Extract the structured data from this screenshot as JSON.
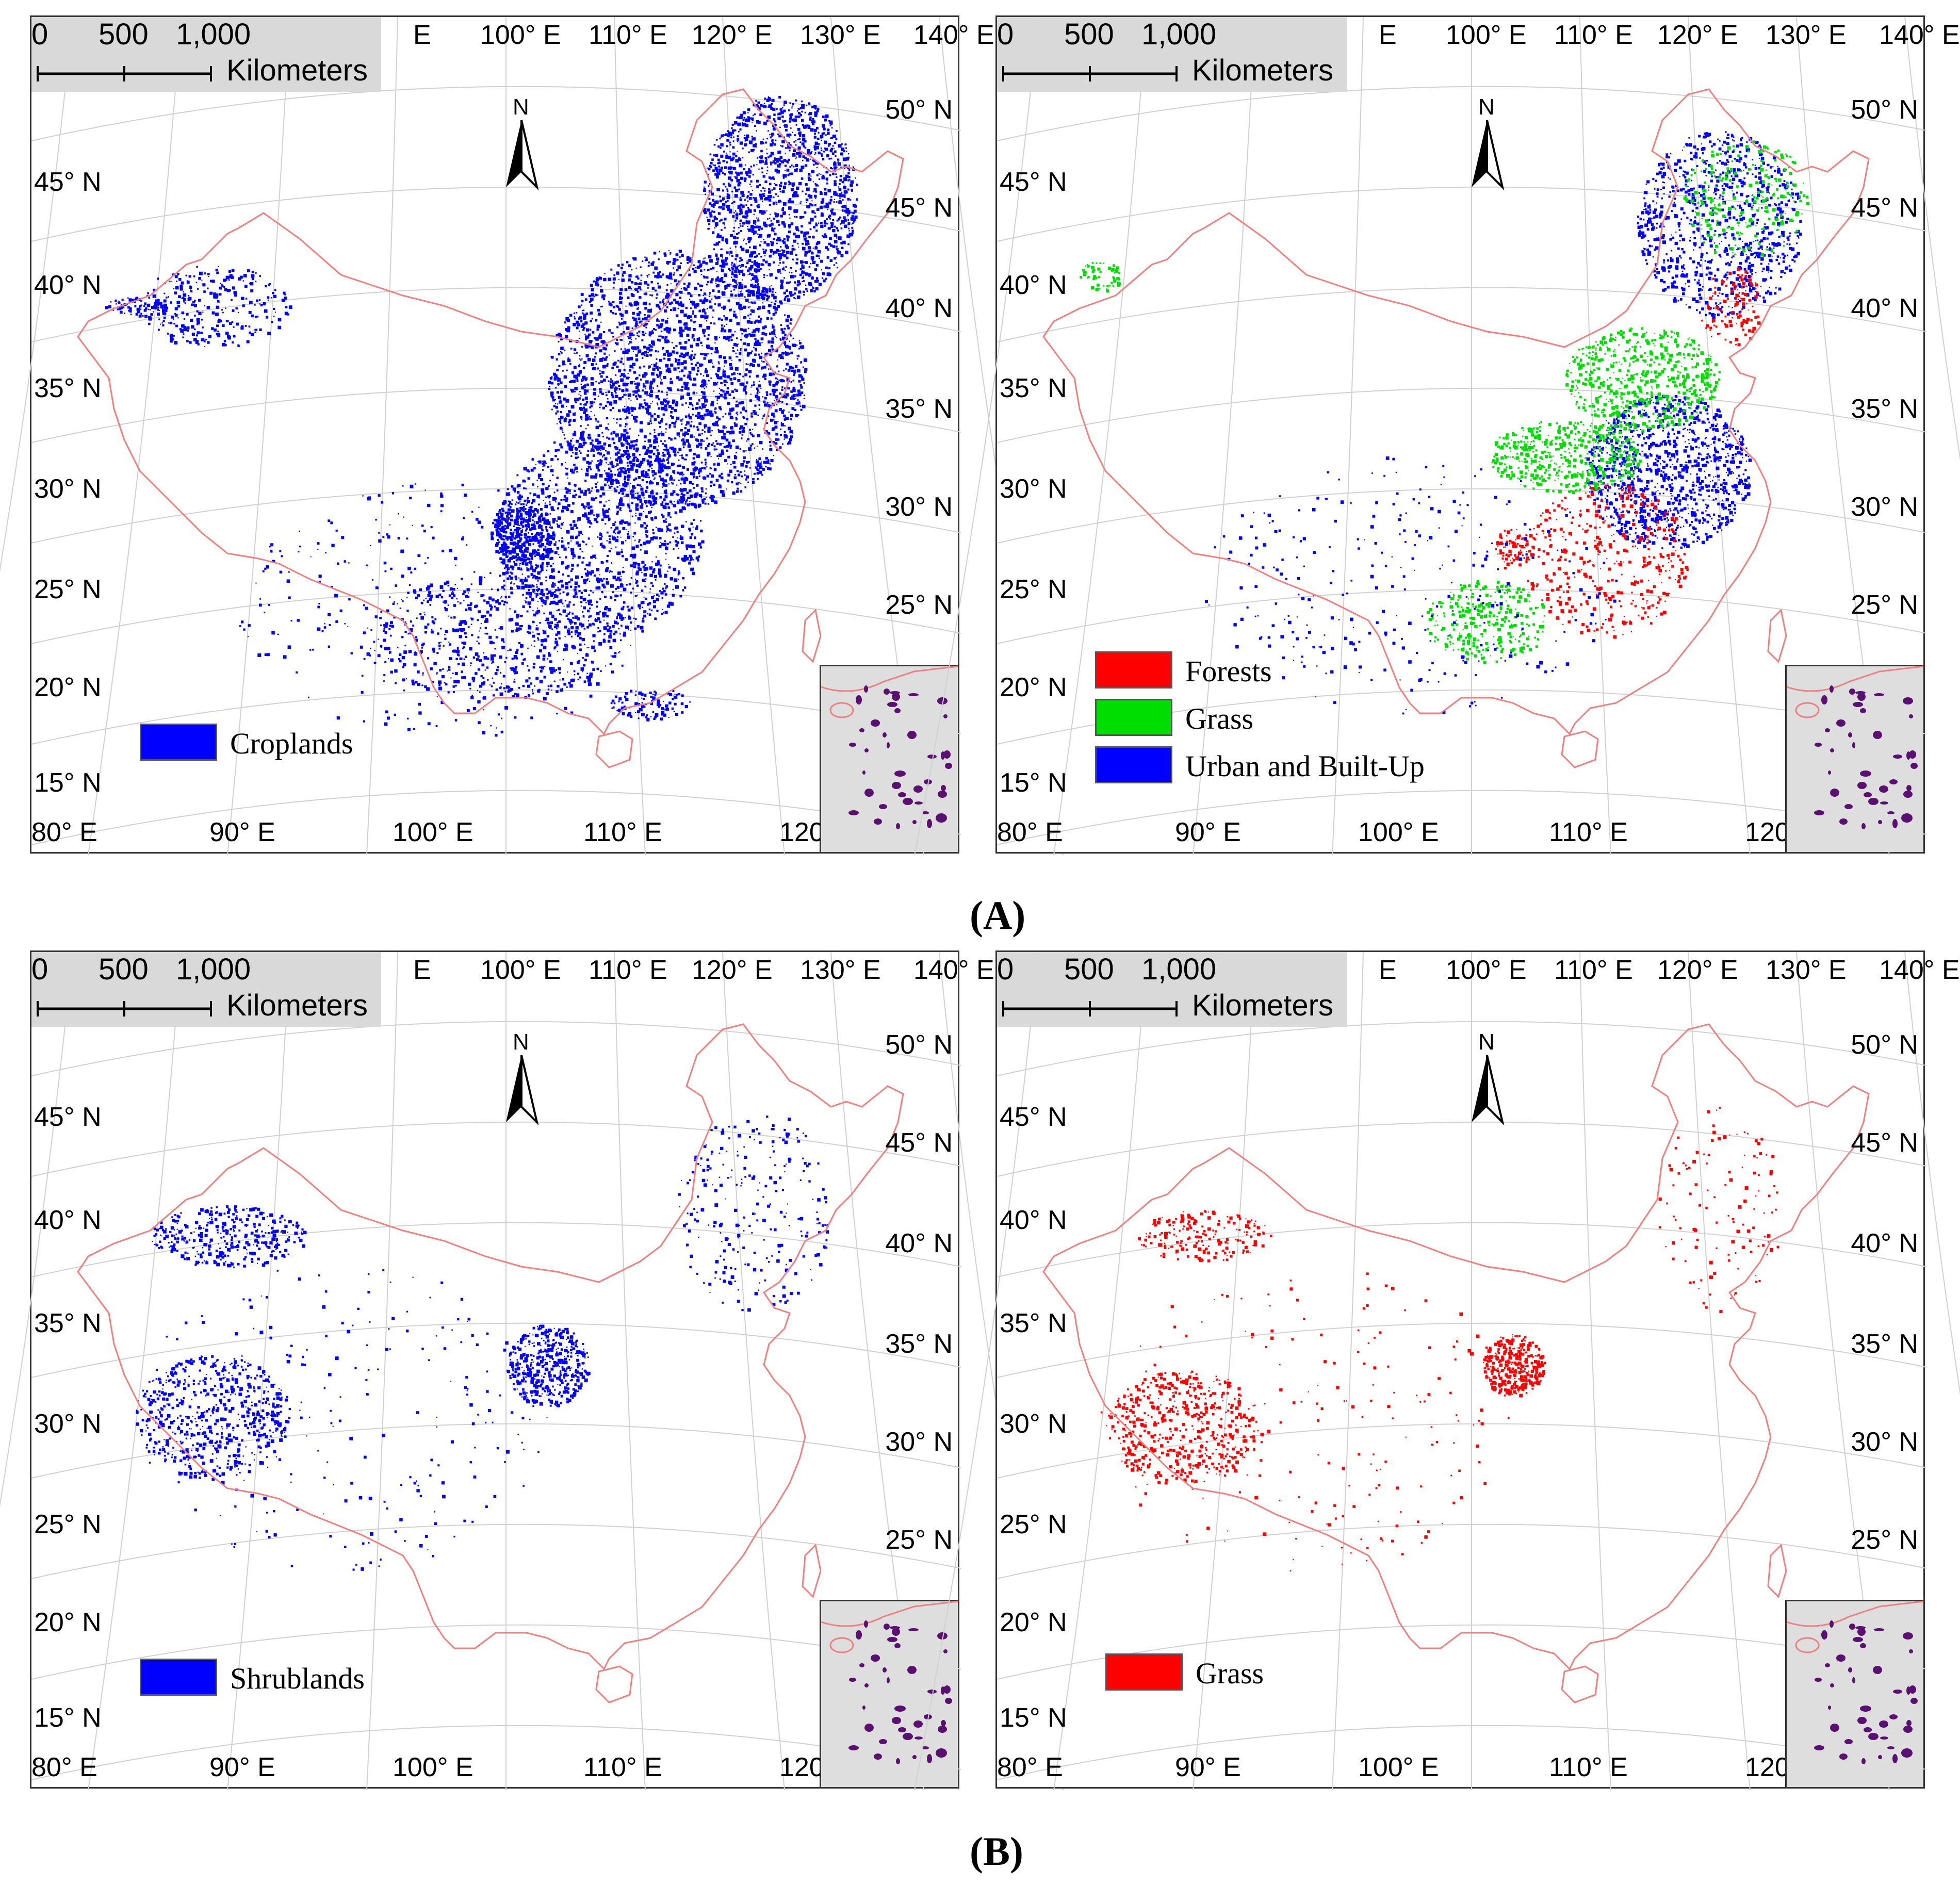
{
  "figure": {
    "captions": [
      "(A)",
      "(B)"
    ]
  },
  "common": {
    "scale_numbers": [
      "0",
      "500",
      "1,000"
    ],
    "scale_unit": "Kilometers",
    "north_label": "N",
    "top_lon_labels": [
      "E",
      "100° E",
      "110° E",
      "120° E",
      "130° E",
      "140° E"
    ],
    "right_lat_labels": [
      "50° N",
      "45° N",
      "40° N",
      "35° N",
      "30° N",
      "25° N"
    ],
    "left_lat_labels": [
      "45° N",
      "40° N",
      "35° N",
      "30° N",
      "25° N",
      "20° N",
      "15° N"
    ],
    "bottom_lon_labels": [
      "80° E",
      "90° E",
      "100° E",
      "110° E",
      "120"
    ],
    "colors": {
      "border": "#f08080",
      "inset_bg": "#dedede",
      "islands": "#5a1070",
      "blue": "#0000ff",
      "red": "#ff0000",
      "green": "#00dd00"
    }
  },
  "panels": [
    {
      "id": "croplands",
      "legend": [
        {
          "label": "Croplands",
          "color": "#0000ff"
        }
      ]
    },
    {
      "id": "mixed",
      "legend": [
        {
          "label": "Forests",
          "color": "#ff0000"
        },
        {
          "label": "Grass",
          "color": "#00dd00"
        },
        {
          "label": "Urban and Built-Up",
          "color": "#0000ff"
        }
      ]
    },
    {
      "id": "shrublands",
      "legend": [
        {
          "label": "Shrublands",
          "color": "#0000ff"
        }
      ]
    },
    {
      "id": "grass",
      "legend": [
        {
          "label": "Grass",
          "color": "#ff0000"
        }
      ]
    }
  ]
}
